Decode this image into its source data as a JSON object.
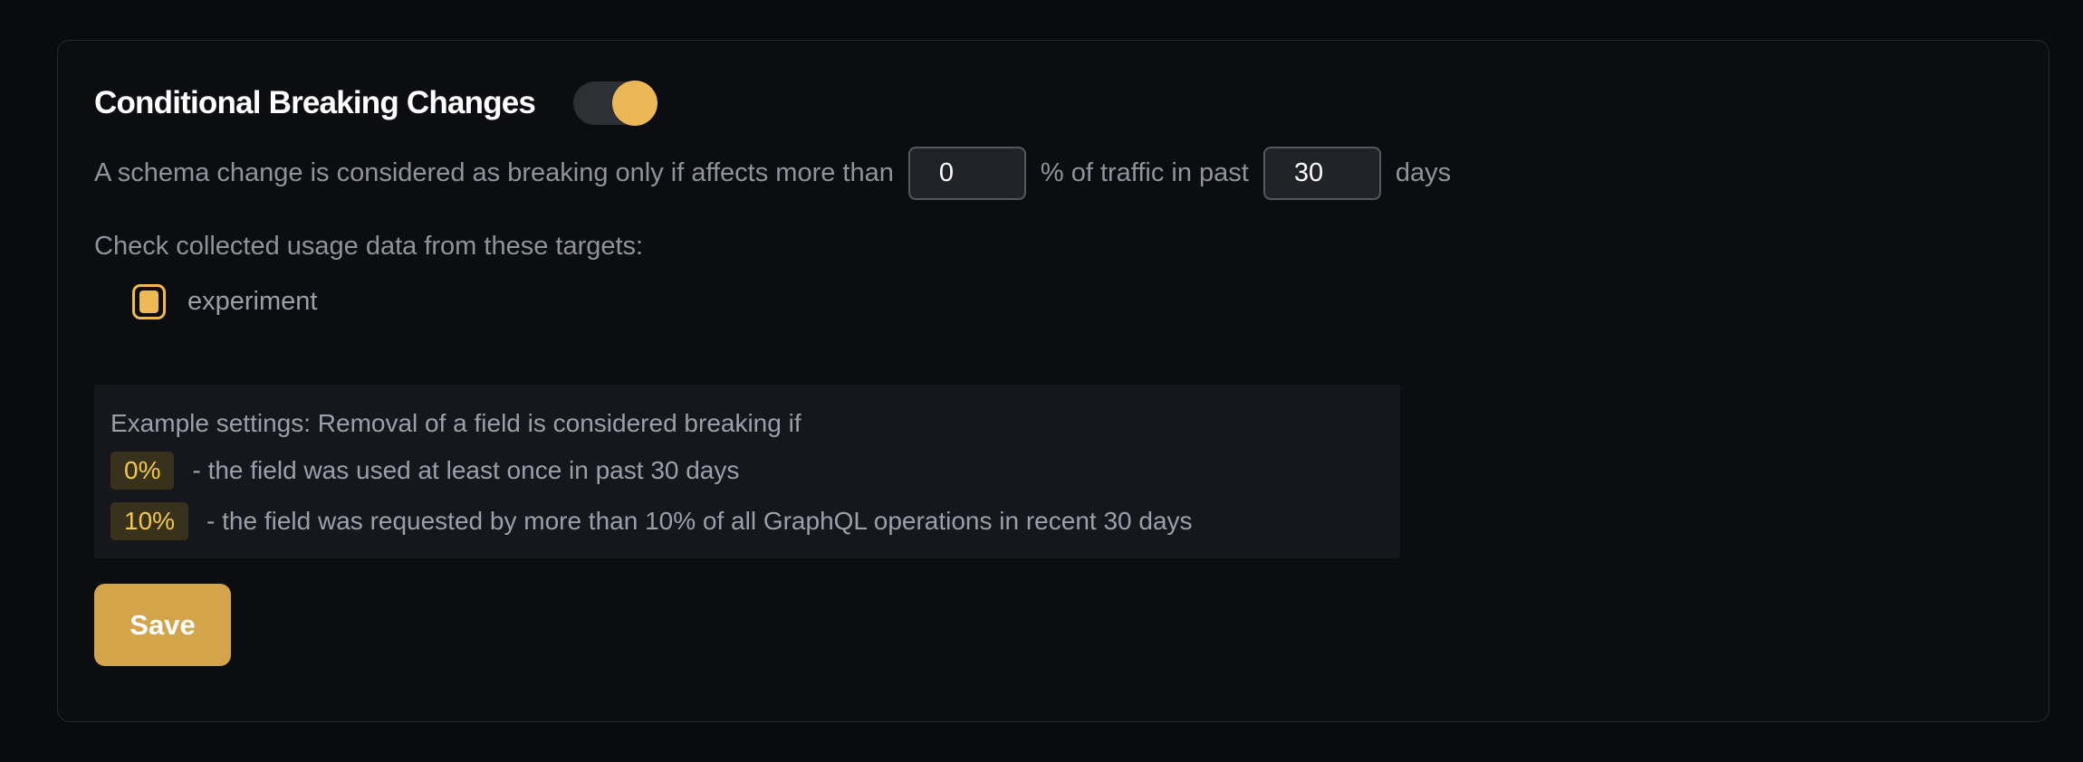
{
  "card": {
    "title": "Conditional Breaking Changes",
    "toggle": {
      "name": "conditional-breaking-changes",
      "state": "on"
    },
    "threshold_sentence": {
      "part1": "A schema change is considered as breaking only if affects more than",
      "percent_value": "0",
      "part2": "% of traffic in past",
      "days_value": "30",
      "part3": "days"
    },
    "targets": {
      "label": "Check collected usage data from these targets:",
      "items": [
        {
          "label": "experiment",
          "checked": true
        }
      ]
    },
    "example": {
      "intro": "Example settings: Removal of a field is considered breaking if",
      "rules": [
        {
          "badge": "0%",
          "text": "- the field was used at least once in past 30 days"
        },
        {
          "badge": "10%",
          "text": "- the field was requested by more than 10% of all GraphQL operations in recent 30 days"
        }
      ]
    },
    "save_label": "Save"
  },
  "colors": {
    "accent_toggle_knob": "#ecb857",
    "accent_checkbox": "#f0ba4e",
    "badge_background": "#38321c",
    "badge_text": "#f3c74b",
    "save_button": "#d3a44a",
    "body_text": "#8e939e",
    "card_border": "#27292e",
    "page_background": "#0a0b0e"
  }
}
